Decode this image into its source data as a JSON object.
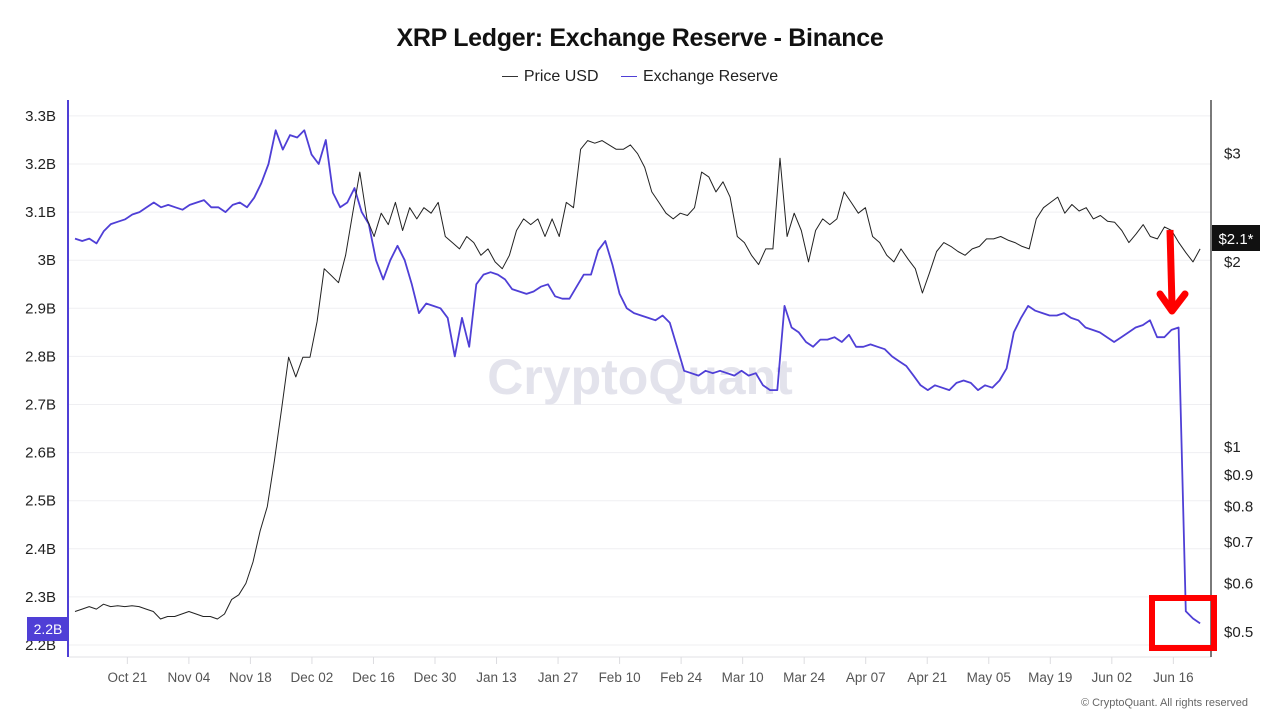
{
  "header": {
    "title": "XRP Ledger: Exchange Reserve - Binance",
    "legend": [
      {
        "label": "Price USD",
        "color": "#333333"
      },
      {
        "label": "Exchange Reserve",
        "color": "#4f3fd6"
      }
    ]
  },
  "watermark": "CryptoQuant",
  "copyright": "© CryptoQuant. All rights reserved",
  "badges": {
    "left_current": "2.2B",
    "right_current": "$2.1*"
  },
  "annotations": {
    "arrow_color": "#ff0000",
    "box_color": "#ff0000",
    "arrow_description": "Red arrow pointing down at the Exchange Reserve drop",
    "box_description": "Red box highlighting the latest Exchange Reserve values"
  },
  "chart_data": {
    "type": "line",
    "title": "XRP Ledger: Exchange Reserve - Binance",
    "xlabel": "",
    "ylabel_left": "Exchange Reserve",
    "ylabel_right": "Price USD",
    "grid": true,
    "legend_position": "top-center",
    "x_start": "Oct 10",
    "x_end": "Jun 23",
    "x_step_days": 2,
    "x_tick_labels": [
      "Oct 21",
      "Nov 04",
      "Nov 18",
      "Dec 02",
      "Dec 16",
      "Dec 30",
      "Jan 13",
      "Jan 27",
      "Feb 10",
      "Feb 24",
      "Mar 10",
      "Mar 24",
      "Apr 07",
      "Apr 21",
      "May 05",
      "May 19",
      "Jun 02",
      "Jun 16"
    ],
    "x_tick_day_offsets": [
      11,
      25,
      39,
      53,
      67,
      81,
      95,
      109,
      123,
      137,
      151,
      165,
      179,
      193,
      207,
      221,
      235,
      249
    ],
    "left_axis": {
      "ticks": [
        "3.3B",
        "3.2B",
        "3.1B",
        "3B",
        "2.9B",
        "2.8B",
        "2.7B",
        "2.6B",
        "2.5B",
        "2.4B",
        "2.3B",
        "2.2B"
      ],
      "tick_values": [
        3.3,
        3.2,
        3.1,
        3.0,
        2.9,
        2.8,
        2.7,
        2.6,
        2.5,
        2.4,
        2.3,
        2.2
      ],
      "unit": "B",
      "range": [
        2.2,
        3.33
      ]
    },
    "right_axis": {
      "scale": "log",
      "ticks": [
        "$3",
        "$2",
        "$1",
        "$0.9",
        "$0.8",
        "$0.7",
        "$0.6",
        "$0.5"
      ],
      "tick_values": [
        3,
        2,
        1,
        0.9,
        0.8,
        0.7,
        0.6,
        0.5
      ],
      "range": [
        0.48,
        3.7
      ]
    },
    "series": [
      {
        "name": "Exchange Reserve",
        "axis": "left",
        "color": "#4f3fd6",
        "values": [
          3.045,
          3.04,
          3.045,
          3.035,
          3.06,
          3.075,
          3.08,
          3.085,
          3.095,
          3.1,
          3.11,
          3.12,
          3.11,
          3.115,
          3.11,
          3.105,
          3.115,
          3.12,
          3.125,
          3.11,
          3.11,
          3.1,
          3.115,
          3.12,
          3.11,
          3.13,
          3.16,
          3.2,
          3.27,
          3.23,
          3.26,
          3.255,
          3.27,
          3.22,
          3.2,
          3.25,
          3.14,
          3.11,
          3.12,
          3.15,
          3.1,
          3.075,
          3.0,
          2.96,
          3.0,
          3.03,
          3.0,
          2.95,
          2.89,
          2.91,
          2.905,
          2.9,
          2.88,
          2.8,
          2.88,
          2.82,
          2.95,
          2.97,
          2.975,
          2.97,
          2.96,
          2.94,
          2.935,
          2.93,
          2.935,
          2.945,
          2.95,
          2.925,
          2.92,
          2.92,
          2.945,
          2.97,
          2.97,
          3.02,
          3.04,
          2.99,
          2.93,
          2.9,
          2.89,
          2.885,
          2.88,
          2.875,
          2.885,
          2.87,
          2.82,
          2.77,
          2.765,
          2.76,
          2.77,
          2.765,
          2.77,
          2.765,
          2.76,
          2.77,
          2.76,
          2.765,
          2.74,
          2.73,
          2.73,
          2.905,
          2.86,
          2.85,
          2.83,
          2.82,
          2.835,
          2.835,
          2.84,
          2.83,
          2.845,
          2.82,
          2.82,
          2.825,
          2.82,
          2.815,
          2.8,
          2.79,
          2.78,
          2.76,
          2.74,
          2.73,
          2.74,
          2.735,
          2.73,
          2.745,
          2.75,
          2.745,
          2.73,
          2.74,
          2.735,
          2.75,
          2.775,
          2.85,
          2.88,
          2.905,
          2.895,
          2.89,
          2.885,
          2.885,
          2.89,
          2.88,
          2.875,
          2.86,
          2.855,
          2.85,
          2.84,
          2.83,
          2.84,
          2.85,
          2.86,
          2.865,
          2.875,
          2.84,
          2.84,
          2.855,
          2.86,
          2.27,
          2.255,
          2.245
        ]
      },
      {
        "name": "Price USD",
        "axis": "right",
        "color": "#222222",
        "values": [
          0.54,
          0.545,
          0.55,
          0.545,
          0.555,
          0.55,
          0.552,
          0.55,
          0.552,
          0.55,
          0.545,
          0.54,
          0.525,
          0.53,
          0.53,
          0.535,
          0.54,
          0.535,
          0.53,
          0.53,
          0.525,
          0.535,
          0.565,
          0.575,
          0.6,
          0.65,
          0.73,
          0.8,
          0.95,
          1.15,
          1.4,
          1.3,
          1.4,
          1.4,
          1.6,
          1.95,
          1.9,
          1.85,
          2.05,
          2.4,
          2.8,
          2.35,
          2.2,
          2.4,
          2.3,
          2.5,
          2.25,
          2.45,
          2.35,
          2.45,
          2.4,
          2.5,
          2.2,
          2.15,
          2.1,
          2.2,
          2.15,
          2.05,
          2.1,
          2.0,
          1.95,
          2.05,
          2.25,
          2.35,
          2.3,
          2.35,
          2.2,
          2.35,
          2.2,
          2.5,
          2.45,
          3.05,
          3.15,
          3.12,
          3.15,
          3.1,
          3.05,
          3.05,
          3.1,
          3.0,
          2.85,
          2.6,
          2.5,
          2.4,
          2.35,
          2.4,
          2.38,
          2.45,
          2.8,
          2.75,
          2.6,
          2.7,
          2.55,
          2.2,
          2.15,
          2.05,
          1.98,
          2.1,
          2.1,
          2.95,
          2.2,
          2.4,
          2.25,
          2.0,
          2.25,
          2.35,
          2.3,
          2.35,
          2.6,
          2.5,
          2.4,
          2.45,
          2.2,
          2.15,
          2.05,
          2.0,
          2.1,
          2.02,
          1.95,
          1.78,
          1.92,
          2.08,
          2.15,
          2.12,
          2.08,
          2.05,
          2.1,
          2.12,
          2.18,
          2.18,
          2.2,
          2.17,
          2.15,
          2.12,
          2.1,
          2.35,
          2.45,
          2.5,
          2.55,
          2.4,
          2.48,
          2.42,
          2.45,
          2.35,
          2.38,
          2.33,
          2.32,
          2.25,
          2.15,
          2.22,
          2.3,
          2.2,
          2.18,
          2.28,
          2.25,
          2.15,
          2.07,
          2.0,
          2.1
        ]
      }
    ]
  }
}
